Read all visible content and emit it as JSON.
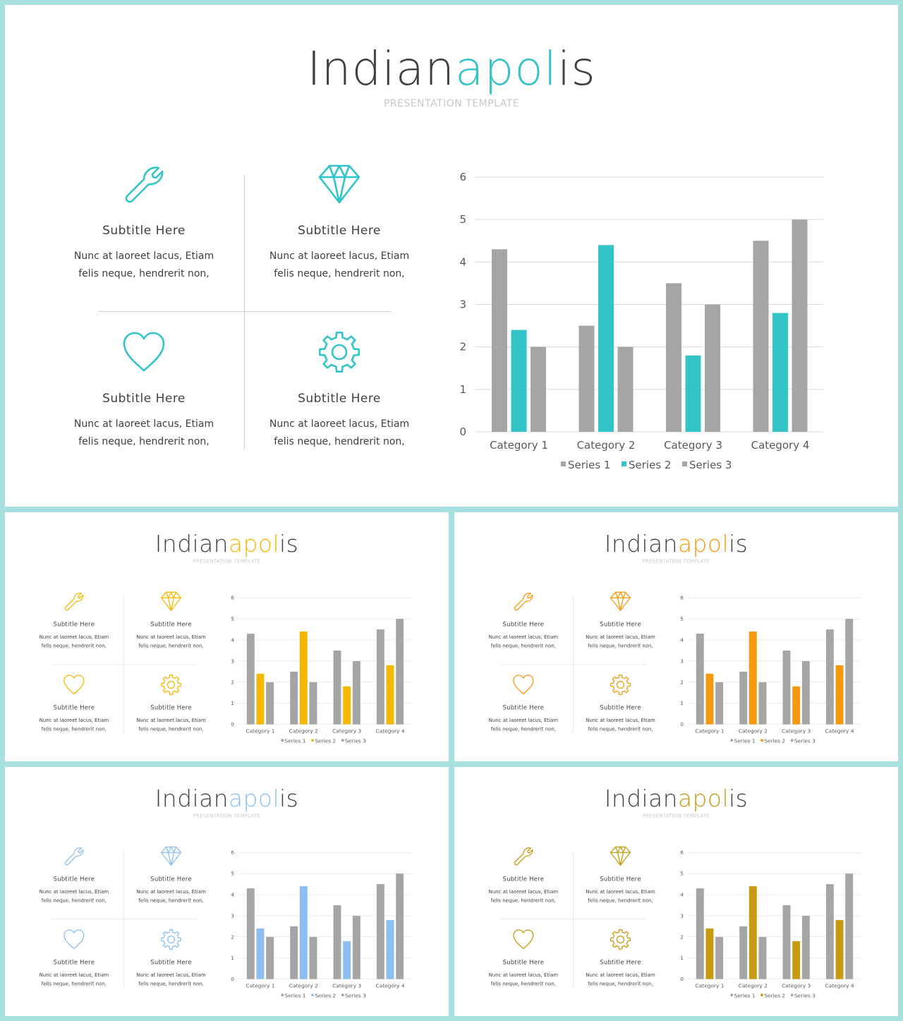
{
  "slides": [
    {
      "accent": "#33c4c8"
    },
    {
      "accent": "#f5b800"
    },
    {
      "accent": "#f59a0c"
    },
    {
      "accent": "#8cbff0"
    },
    {
      "accent": "#c89a10"
    }
  ],
  "title": {
    "part1": "Indian",
    "part2": "apol",
    "part3": "is"
  },
  "subtitle": "PRESENTATION  TEMPLATE",
  "features": [
    {
      "icon": "wrench-icon",
      "title": "Subtitle  Here",
      "line1": "Nunc  at laoreet  lacus, Etiam",
      "line2": "felis  neque,  hendrerit  non,"
    },
    {
      "icon": "diamond-icon",
      "title": "Subtitle  Here",
      "line1": "Nunc  at laoreet  lacus, Etiam",
      "line2": "felis  neque,  hendrerit  non,"
    },
    {
      "icon": "heart-icon",
      "title": "Subtitle  Here",
      "line1": "Nunc  at laoreet  lacus, Etiam",
      "line2": "felis  neque,  hendrerit  non,"
    },
    {
      "icon": "gear-icon",
      "title": "Subtitle  Here",
      "line1": "Nunc  at laoreet  lacus, Etiam",
      "line2": "felis  neque,  hendrerit  non,"
    }
  ],
  "chart_data": {
    "type": "bar",
    "categories": [
      "Category 1",
      "Category 2",
      "Category 3",
      "Category 4"
    ],
    "series": [
      {
        "name": "Series 1",
        "values": [
          4.3,
          2.5,
          3.5,
          4.5
        ]
      },
      {
        "name": "Series 2",
        "values": [
          2.4,
          4.4,
          1.8,
          2.8
        ]
      },
      {
        "name": "Series 3",
        "values": [
          2.0,
          2.0,
          3.0,
          5.0
        ]
      }
    ],
    "ylim": [
      0,
      6
    ],
    "yticks": [
      "0",
      "1",
      "2",
      "3",
      "4",
      "5",
      "6"
    ],
    "grid": true,
    "legend": "bottom",
    "colors": {
      "series1": "#a5a5a5",
      "series3": "#a5a5a5"
    }
  }
}
